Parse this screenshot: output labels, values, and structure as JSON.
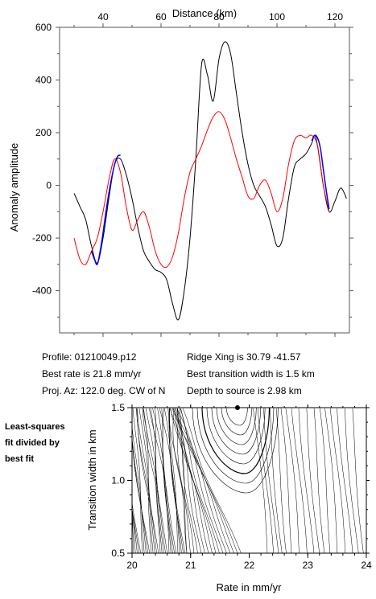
{
  "chart_data": [
    {
      "type": "line",
      "title": "",
      "xlabel": "Distance (km)",
      "ylabel": "Anomaly amplitude",
      "xlim": [
        25,
        125
      ],
      "ylim": [
        -560,
        600
      ],
      "x_ticks": [
        40,
        60,
        80,
        100,
        120
      ],
      "y_ticks": [
        600,
        400,
        200,
        0,
        -200,
        -400
      ],
      "grid": false,
      "legend": "none",
      "series": [
        {
          "color": "#000000",
          "x": [
            30,
            32,
            34,
            36,
            38,
            40,
            42,
            44,
            46,
            48,
            50,
            52,
            54,
            56,
            58,
            60,
            62,
            64,
            66,
            68,
            70,
            72,
            74,
            76,
            78,
            80,
            82,
            84,
            86,
            88,
            90,
            92,
            94,
            96,
            98,
            100,
            102,
            104,
            106,
            108,
            110,
            112,
            113,
            114,
            116,
            118,
            120,
            122,
            124
          ],
          "values": [
            -30,
            -80,
            -130,
            -230,
            -295,
            -200,
            -50,
            80,
            100,
            40,
            -50,
            -160,
            -250,
            -290,
            -320,
            -330,
            -360,
            -450,
            -510,
            -400,
            -200,
            100,
            460,
            420,
            320,
            480,
            545,
            500,
            350,
            200,
            80,
            0,
            -40,
            -80,
            -150,
            -230,
            -200,
            -50,
            70,
            100,
            120,
            160,
            190,
            150,
            0,
            -100,
            -60,
            -10,
            -50
          ]
        },
        {
          "color": "#ff0000",
          "x": [
            30,
            32,
            34,
            36,
            38,
            40,
            42,
            44,
            46,
            48,
            50,
            52,
            54,
            56,
            58,
            60,
            62,
            64,
            66,
            68,
            70,
            72,
            74,
            76,
            78,
            80,
            82,
            84,
            86,
            88,
            90,
            92,
            94,
            96,
            98,
            100,
            102,
            104,
            106,
            108,
            110,
            112,
            114,
            116,
            118
          ],
          "values": [
            -200,
            -280,
            -300,
            -250,
            -200,
            -100,
            20,
            100,
            50,
            -80,
            -170,
            -130,
            -100,
            -160,
            -250,
            -300,
            -310,
            -270,
            -180,
            -50,
            50,
            100,
            150,
            210,
            260,
            280,
            250,
            180,
            100,
            30,
            -40,
            -50,
            0,
            20,
            -30,
            -100,
            -50,
            80,
            170,
            190,
            180,
            190,
            150,
            0,
            -100
          ]
        },
        {
          "color": "#0000ff",
          "x": [
            36,
            37,
            38,
            39,
            40,
            41,
            42,
            43,
            44,
            45,
            46
          ],
          "values": [
            -250,
            -280,
            -300,
            -250,
            -180,
            -100,
            -30,
            30,
            80,
            110,
            115
          ]
        },
        {
          "color": "#0000ff",
          "x": [
            112,
            113,
            114,
            115,
            116,
            117,
            118
          ],
          "values": [
            170,
            190,
            180,
            140,
            60,
            -20,
            -90
          ]
        }
      ]
    },
    {
      "type": "line",
      "title": "",
      "xlabel": "Rate in mm/yr",
      "ylabel": "Transition width in km",
      "xlim": [
        20,
        24
      ],
      "ylim": [
        0.5,
        1.5
      ],
      "x_ticks": [
        20,
        21,
        22,
        23,
        24
      ],
      "y_ticks": [
        1.5,
        1.0,
        0.5
      ],
      "grid": false,
      "legend": "none",
      "best_fit_point": {
        "x": 21.8,
        "y": 1.5
      }
    }
  ],
  "info": {
    "profile": "Profile: 01210049.p12",
    "best_rate": "Best rate is 21.8 mm/yr",
    "proj_az": "Proj. Az: 122.0 deg. CW of N",
    "ridge_xing": "Ridge Xing is 30.79 -41.57",
    "best_transition": "Best transition width is 1.5 km",
    "depth": "Depth to source is    2.98 km"
  },
  "side_note": [
    "Least-squares",
    "fit divided by",
    "best fit"
  ]
}
